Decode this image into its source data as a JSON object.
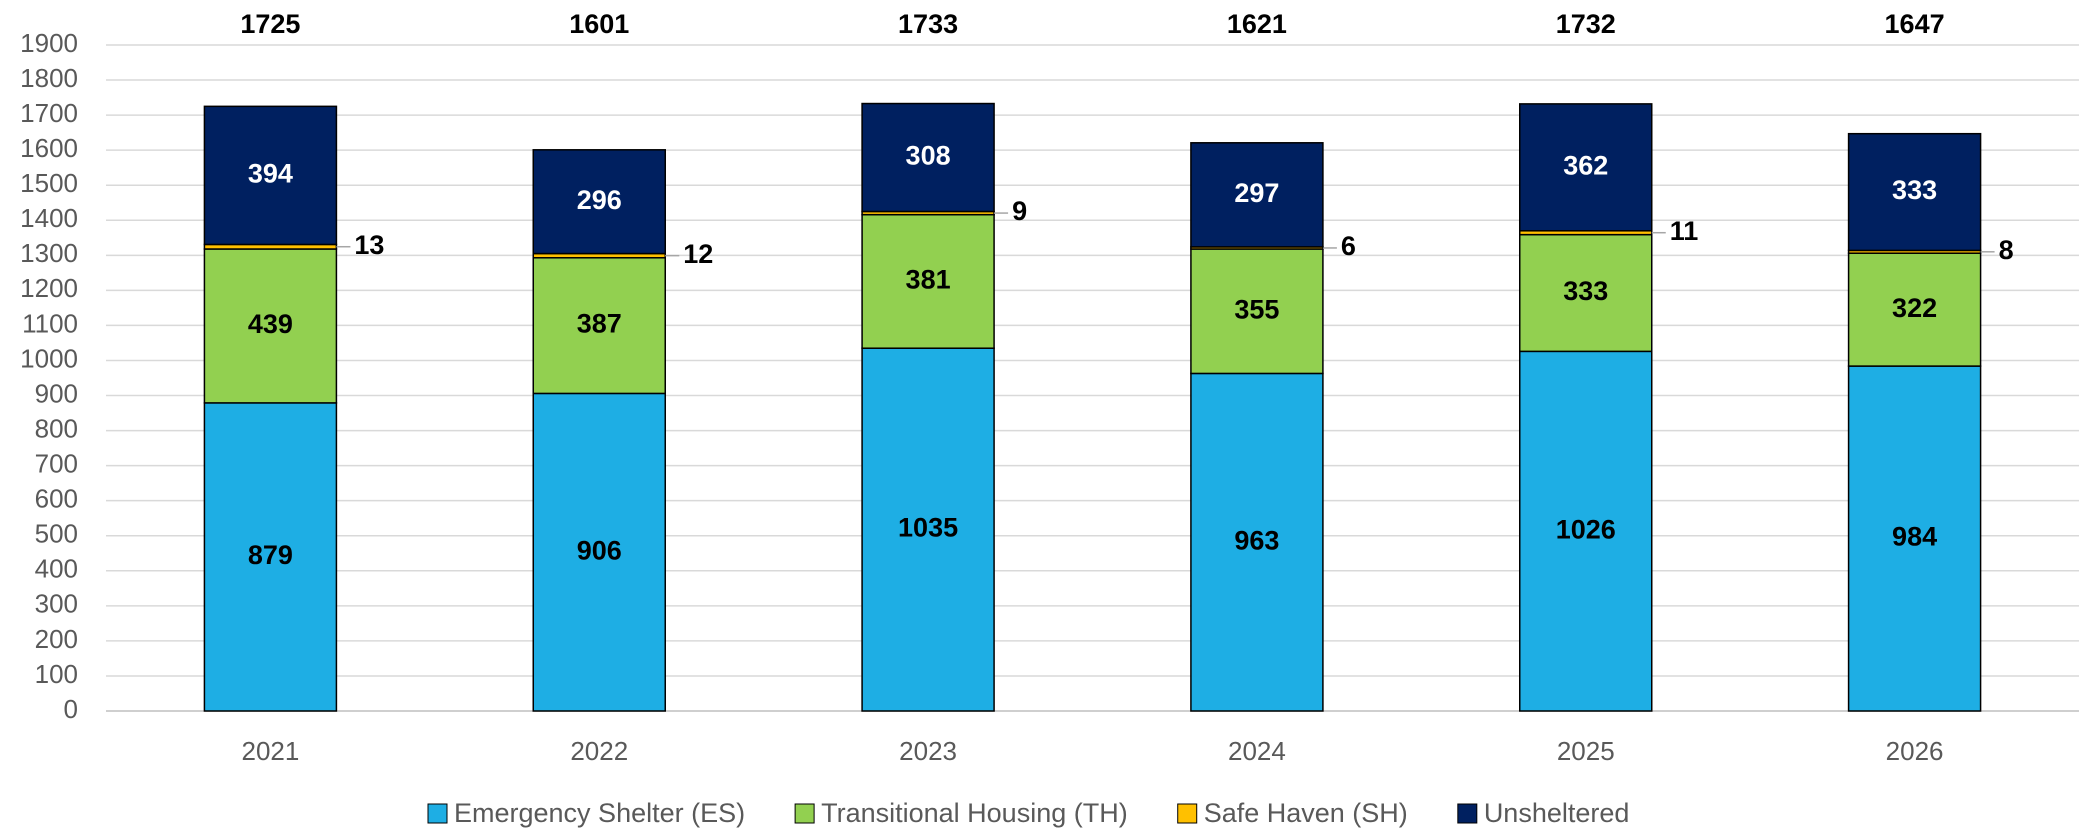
{
  "chart_data": {
    "type": "bar",
    "stacked": true,
    "categories": [
      "2021",
      "2022",
      "2023",
      "2024",
      "2025",
      "2026"
    ],
    "series": [
      {
        "name": "Emergency Shelter (ES)",
        "color": "#1eaee4",
        "values": [
          879,
          906,
          1035,
          963,
          1026,
          984
        ]
      },
      {
        "name": "Transitional Housing (TH)",
        "color": "#92d050",
        "values": [
          439,
          387,
          381,
          355,
          333,
          322
        ]
      },
      {
        "name": "Safe Haven (SH)",
        "color": "#ffc000",
        "values": [
          13,
          12,
          9,
          6,
          11,
          8
        ]
      },
      {
        "name": "Unsheltered",
        "color": "#002060",
        "values": [
          394,
          296,
          308,
          297,
          362,
          333
        ]
      }
    ],
    "totals": [
      1725,
      1601,
      1733,
      1621,
      1732,
      1647
    ],
    "ylim": [
      0,
      1900
    ],
    "yticks": [
      0,
      100,
      200,
      300,
      400,
      500,
      600,
      700,
      800,
      900,
      1000,
      1100,
      1200,
      1300,
      1400,
      1500,
      1600,
      1700,
      1800,
      1900
    ],
    "grid": true,
    "legend": "bottom"
  }
}
